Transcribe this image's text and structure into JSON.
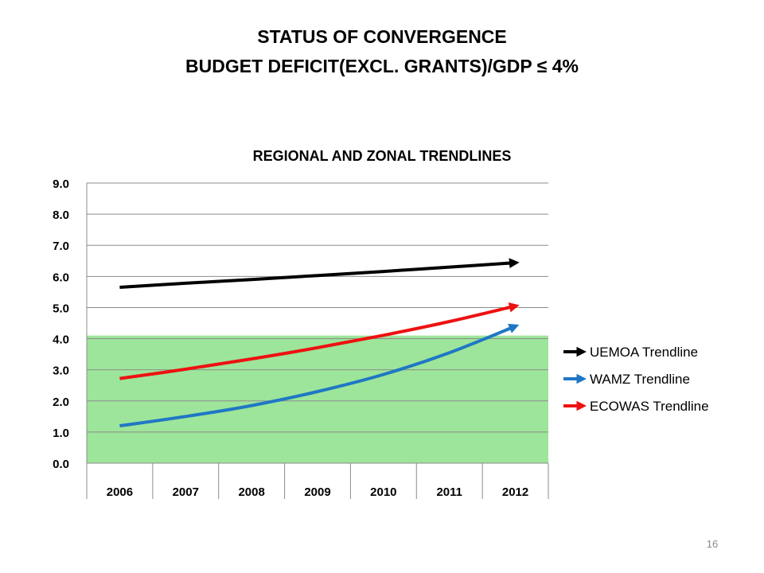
{
  "slide": {
    "title_line1": "STATUS OF CONVERGENCE",
    "title_line2": "BUDGET DEFICIT(EXCL. GRANTS)/GDP ≤ 4%",
    "page_number": "16"
  },
  "chart_data": {
    "type": "line",
    "title": "REGIONAL AND ZONAL TRENDLINES",
    "xlabel": "",
    "ylabel": "",
    "categories": [
      "2006",
      "2007",
      "2008",
      "2009",
      "2010",
      "2011",
      "2012"
    ],
    "ylim": [
      0,
      9
    ],
    "yticks": [
      "0.0",
      "1.0",
      "2.0",
      "3.0",
      "4.0",
      "5.0",
      "6.0",
      "7.0",
      "8.0",
      "9.0"
    ],
    "grid": true,
    "legend_position": "right",
    "threshold_band": {
      "from": 0,
      "to": 4.1,
      "color": "#9de59a"
    },
    "series": [
      {
        "name": "UEMOA Trendline",
        "color": "#000000",
        "values": [
          5.65,
          5.78,
          5.9,
          6.03,
          6.16,
          6.3,
          6.44
        ]
      },
      {
        "name": "WAMZ Trendline",
        "color": "#1f77c4",
        "values": [
          1.2,
          1.5,
          1.85,
          2.3,
          2.85,
          3.55,
          4.4
        ]
      },
      {
        "name": "ECOWAS Trendline",
        "color": "#ee1111",
        "values": [
          2.72,
          3.02,
          3.35,
          3.71,
          4.11,
          4.55,
          5.05
        ]
      }
    ]
  }
}
